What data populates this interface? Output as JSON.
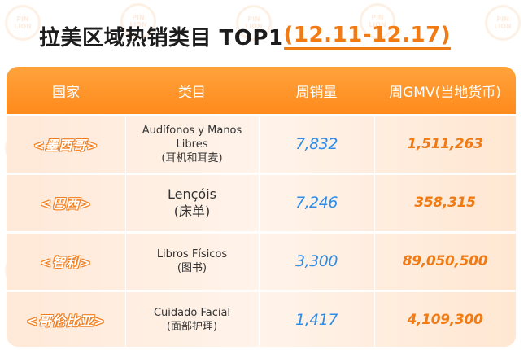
{
  "title": {
    "main": "拉美区域热销类目 TOP1",
    "date_range": "(12.11-12.17)"
  },
  "watermark": {
    "line1": "PIN",
    "line2": "LION"
  },
  "table": {
    "headers": [
      "国家",
      "类目",
      "周销量",
      "周GMV(当地货币)"
    ],
    "rows": [
      {
        "country": "<墨西哥>",
        "category_lines": [
          "Audífonos y Manos",
          "Libres",
          "(耳机和耳麦)"
        ],
        "weekly_sales": "7,832",
        "weekly_gmv": "1,511,263"
      },
      {
        "country": "<巴西>",
        "category_lines": [
          "Lençóis",
          "(床单)"
        ],
        "weekly_sales": "7,246",
        "weekly_gmv": "358,315"
      },
      {
        "country": "<智利>",
        "category_lines": [
          "Libros Físicos",
          "(图书)"
        ],
        "weekly_sales": "3,300",
        "weekly_gmv": "89,050,500"
      },
      {
        "country": "<哥伦比亚>",
        "category_lines": [
          "Cuidado Facial",
          "(面部护理)"
        ],
        "weekly_sales": "1,417",
        "weekly_gmv": "4,109,300"
      }
    ]
  },
  "colors": {
    "accent": "#f07a14",
    "header_bg": "#ff9326",
    "sales_blue": "#2d8de8",
    "row_bg": "#ffeede"
  }
}
